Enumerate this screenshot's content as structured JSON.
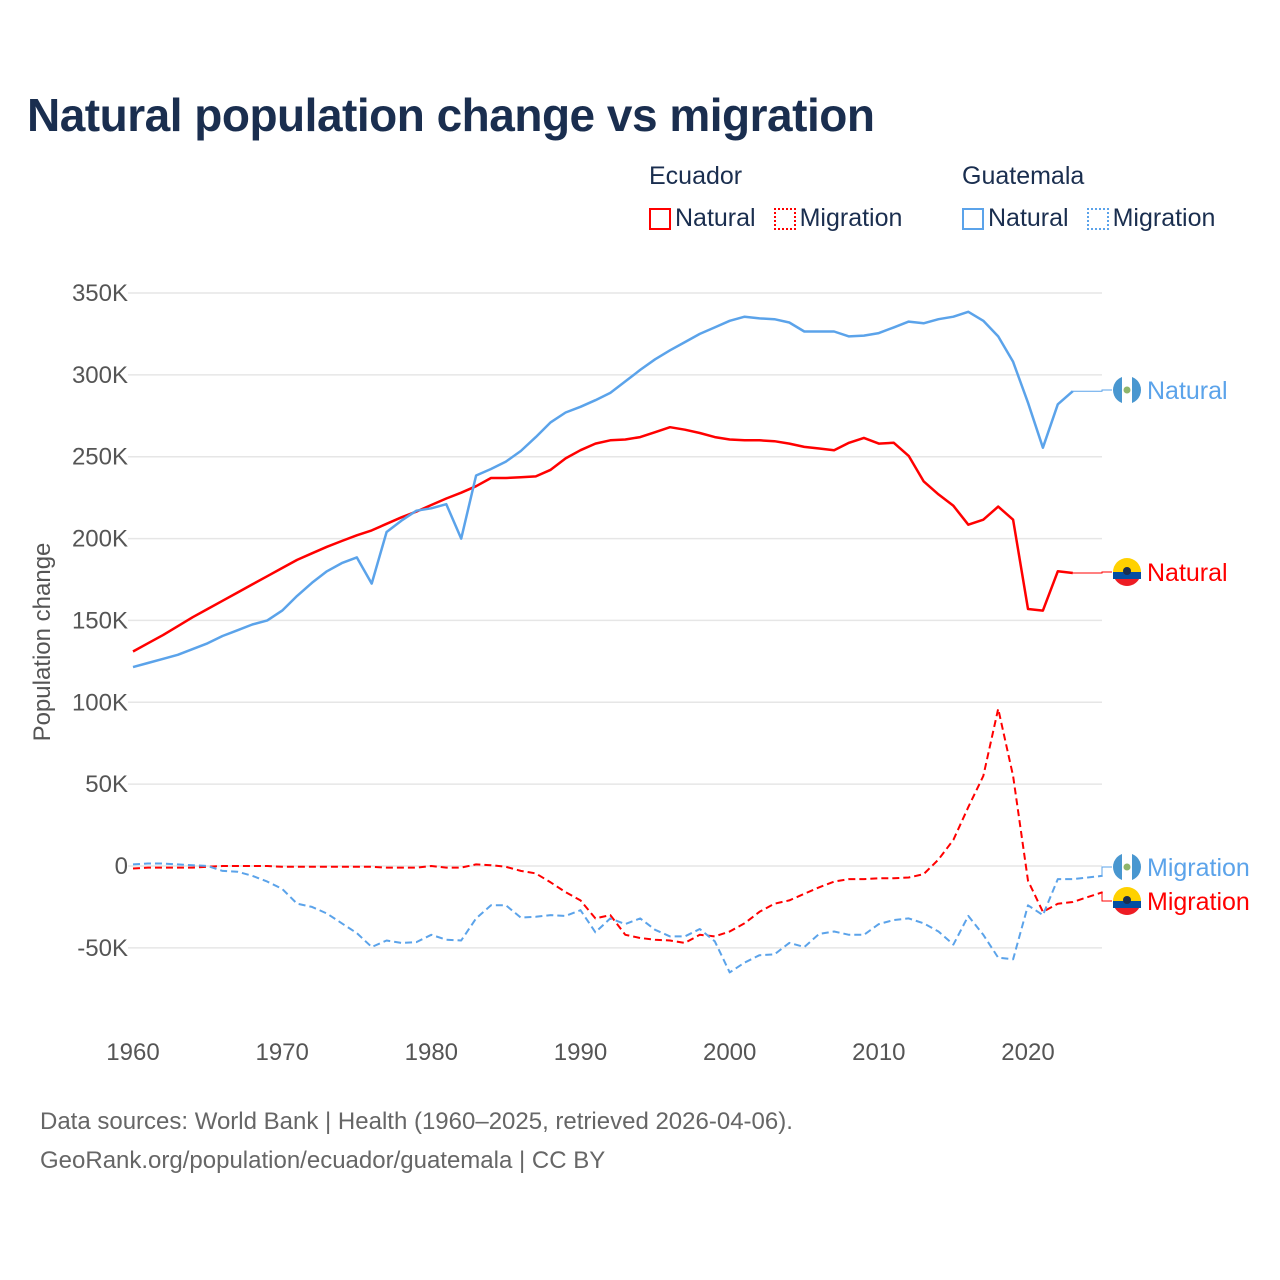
{
  "chart_data": {
    "type": "line",
    "title": "Natural population change vs migration",
    "ylabel": "Population change",
    "xlabel": "",
    "xlim": [
      1960,
      2025
    ],
    "ylim": [
      -100000,
      350000
    ],
    "x_ticks": [
      "1960",
      "1970",
      "1980",
      "1990",
      "2000",
      "2010",
      "2020"
    ],
    "y_ticks": [
      {
        "value": 350000,
        "label": "350K"
      },
      {
        "value": 300000,
        "label": "300K"
      },
      {
        "value": 250000,
        "label": "250K"
      },
      {
        "value": 200000,
        "label": "200K"
      },
      {
        "value": 150000,
        "label": "150K"
      },
      {
        "value": 100000,
        "label": "100K"
      },
      {
        "value": 50000,
        "label": "50K"
      },
      {
        "value": 0,
        "label": "0"
      },
      {
        "value": -50000,
        "label": "-50K"
      }
    ],
    "grid": true,
    "legend": {
      "placement": "top-right",
      "groups": [
        {
          "title": "Ecuador",
          "items": [
            "Natural",
            "Migration"
          ]
        },
        {
          "title": "Guatemala",
          "items": [
            "Natural",
            "Migration"
          ]
        }
      ]
    },
    "series": [
      {
        "name": "Ecuador Natural",
        "country": "Ecuador",
        "label": "Natural",
        "color": "#ff0000",
        "dash": false,
        "start_year": 1960,
        "values_k": [
          131,
          136,
          141,
          146.5,
          152,
          157,
          162,
          167,
          172,
          177,
          182,
          187,
          191,
          195,
          198.5,
          202,
          205,
          209,
          213,
          216.5,
          220.5,
          224.5,
          228,
          232,
          237,
          237,
          237.5,
          238,
          242,
          249,
          254,
          258,
          260,
          260.5,
          262,
          265,
          268,
          266.5,
          264.5,
          262,
          260.5,
          260,
          260,
          259.5,
          258,
          256,
          255,
          254,
          258.5,
          261.5,
          258,
          258.5,
          250.5,
          235,
          227,
          220,
          208.5,
          211.5,
          219.5,
          211.5,
          157,
          156,
          180,
          179
        ]
      },
      {
        "name": "Ecuador Migration",
        "country": "Ecuador",
        "label": "Migration",
        "color": "#ff0000",
        "dash": true,
        "start_year": 1960,
        "values_k": [
          -1.5,
          -1,
          -1,
          -1,
          -1,
          -0.5,
          0,
          0,
          0,
          0,
          -0.5,
          -0.5,
          -0.5,
          -0.5,
          -0.5,
          -0.5,
          -0.5,
          -1,
          -1,
          -1,
          0,
          -1,
          -1,
          1,
          0.5,
          -0.5,
          -3,
          -4.5,
          -10,
          -16,
          -21,
          -32,
          -30,
          -42,
          -44,
          -45,
          -45.5,
          -47,
          -42,
          -43,
          -40,
          -35,
          -28,
          -23,
          -21,
          -17,
          -13,
          -9.5,
          -8,
          -8,
          -7.5,
          -7.5,
          -7,
          -5,
          4,
          16,
          36,
          55,
          96,
          55,
          -9,
          -28,
          -23,
          -22,
          -19,
          -16
        ]
      },
      {
        "name": "Guatemala Natural",
        "country": "Guatemala",
        "label": "Natural",
        "color": "#5ba3ea",
        "dash": false,
        "start_year": 1960,
        "values_k": [
          121.5,
          124,
          126.5,
          129,
          132.5,
          136,
          140.5,
          144,
          147.5,
          150,
          156,
          165,
          173,
          180,
          185,
          188.5,
          172.5,
          204,
          211,
          217,
          218.5,
          221,
          200,
          238.5,
          242.5,
          247,
          253.5,
          262,
          271,
          277,
          280.5,
          284.5,
          289,
          296,
          303,
          309.5,
          315,
          320,
          325,
          329,
          333,
          335.5,
          334.5,
          334,
          332,
          326.5,
          326.5,
          326.5,
          323.5,
          324,
          325.5,
          329,
          332.5,
          331.5,
          334,
          335.5,
          338.5,
          333,
          323.5,
          308,
          283,
          255.5,
          282,
          290
        ]
      },
      {
        "name": "Guatemala Migration",
        "country": "Guatemala",
        "label": "Migration",
        "color": "#5ba3ea",
        "dash": true,
        "start_year": 1960,
        "values_k": [
          1,
          1.5,
          1.5,
          1,
          0.5,
          0,
          -3,
          -3.5,
          -6,
          -9.5,
          -14,
          -23,
          -25,
          -29,
          -35,
          -41,
          -49.5,
          -45.5,
          -47,
          -46.5,
          -42,
          -45,
          -45.5,
          -32,
          -24,
          -24,
          -31.5,
          -31,
          -30,
          -30.5,
          -27,
          -40.5,
          -32,
          -35.5,
          -32,
          -39,
          -43,
          -43,
          -38.5,
          -46,
          -65,
          -59,
          -54.5,
          -54,
          -47,
          -49.5,
          -41.5,
          -40,
          -42,
          -42,
          -35.5,
          -33,
          -32,
          -35,
          -40,
          -48,
          -30.5,
          -42,
          -56,
          -57,
          -24,
          -30,
          -8,
          -8,
          -7,
          -6
        ]
      }
    ]
  },
  "footer": {
    "line1": "Data sources: World Bank | Health (1960–2025, retrieved 2026-04-06).",
    "line2": "GeoRank.org/population/ecuador/guatemala | CC BY"
  }
}
